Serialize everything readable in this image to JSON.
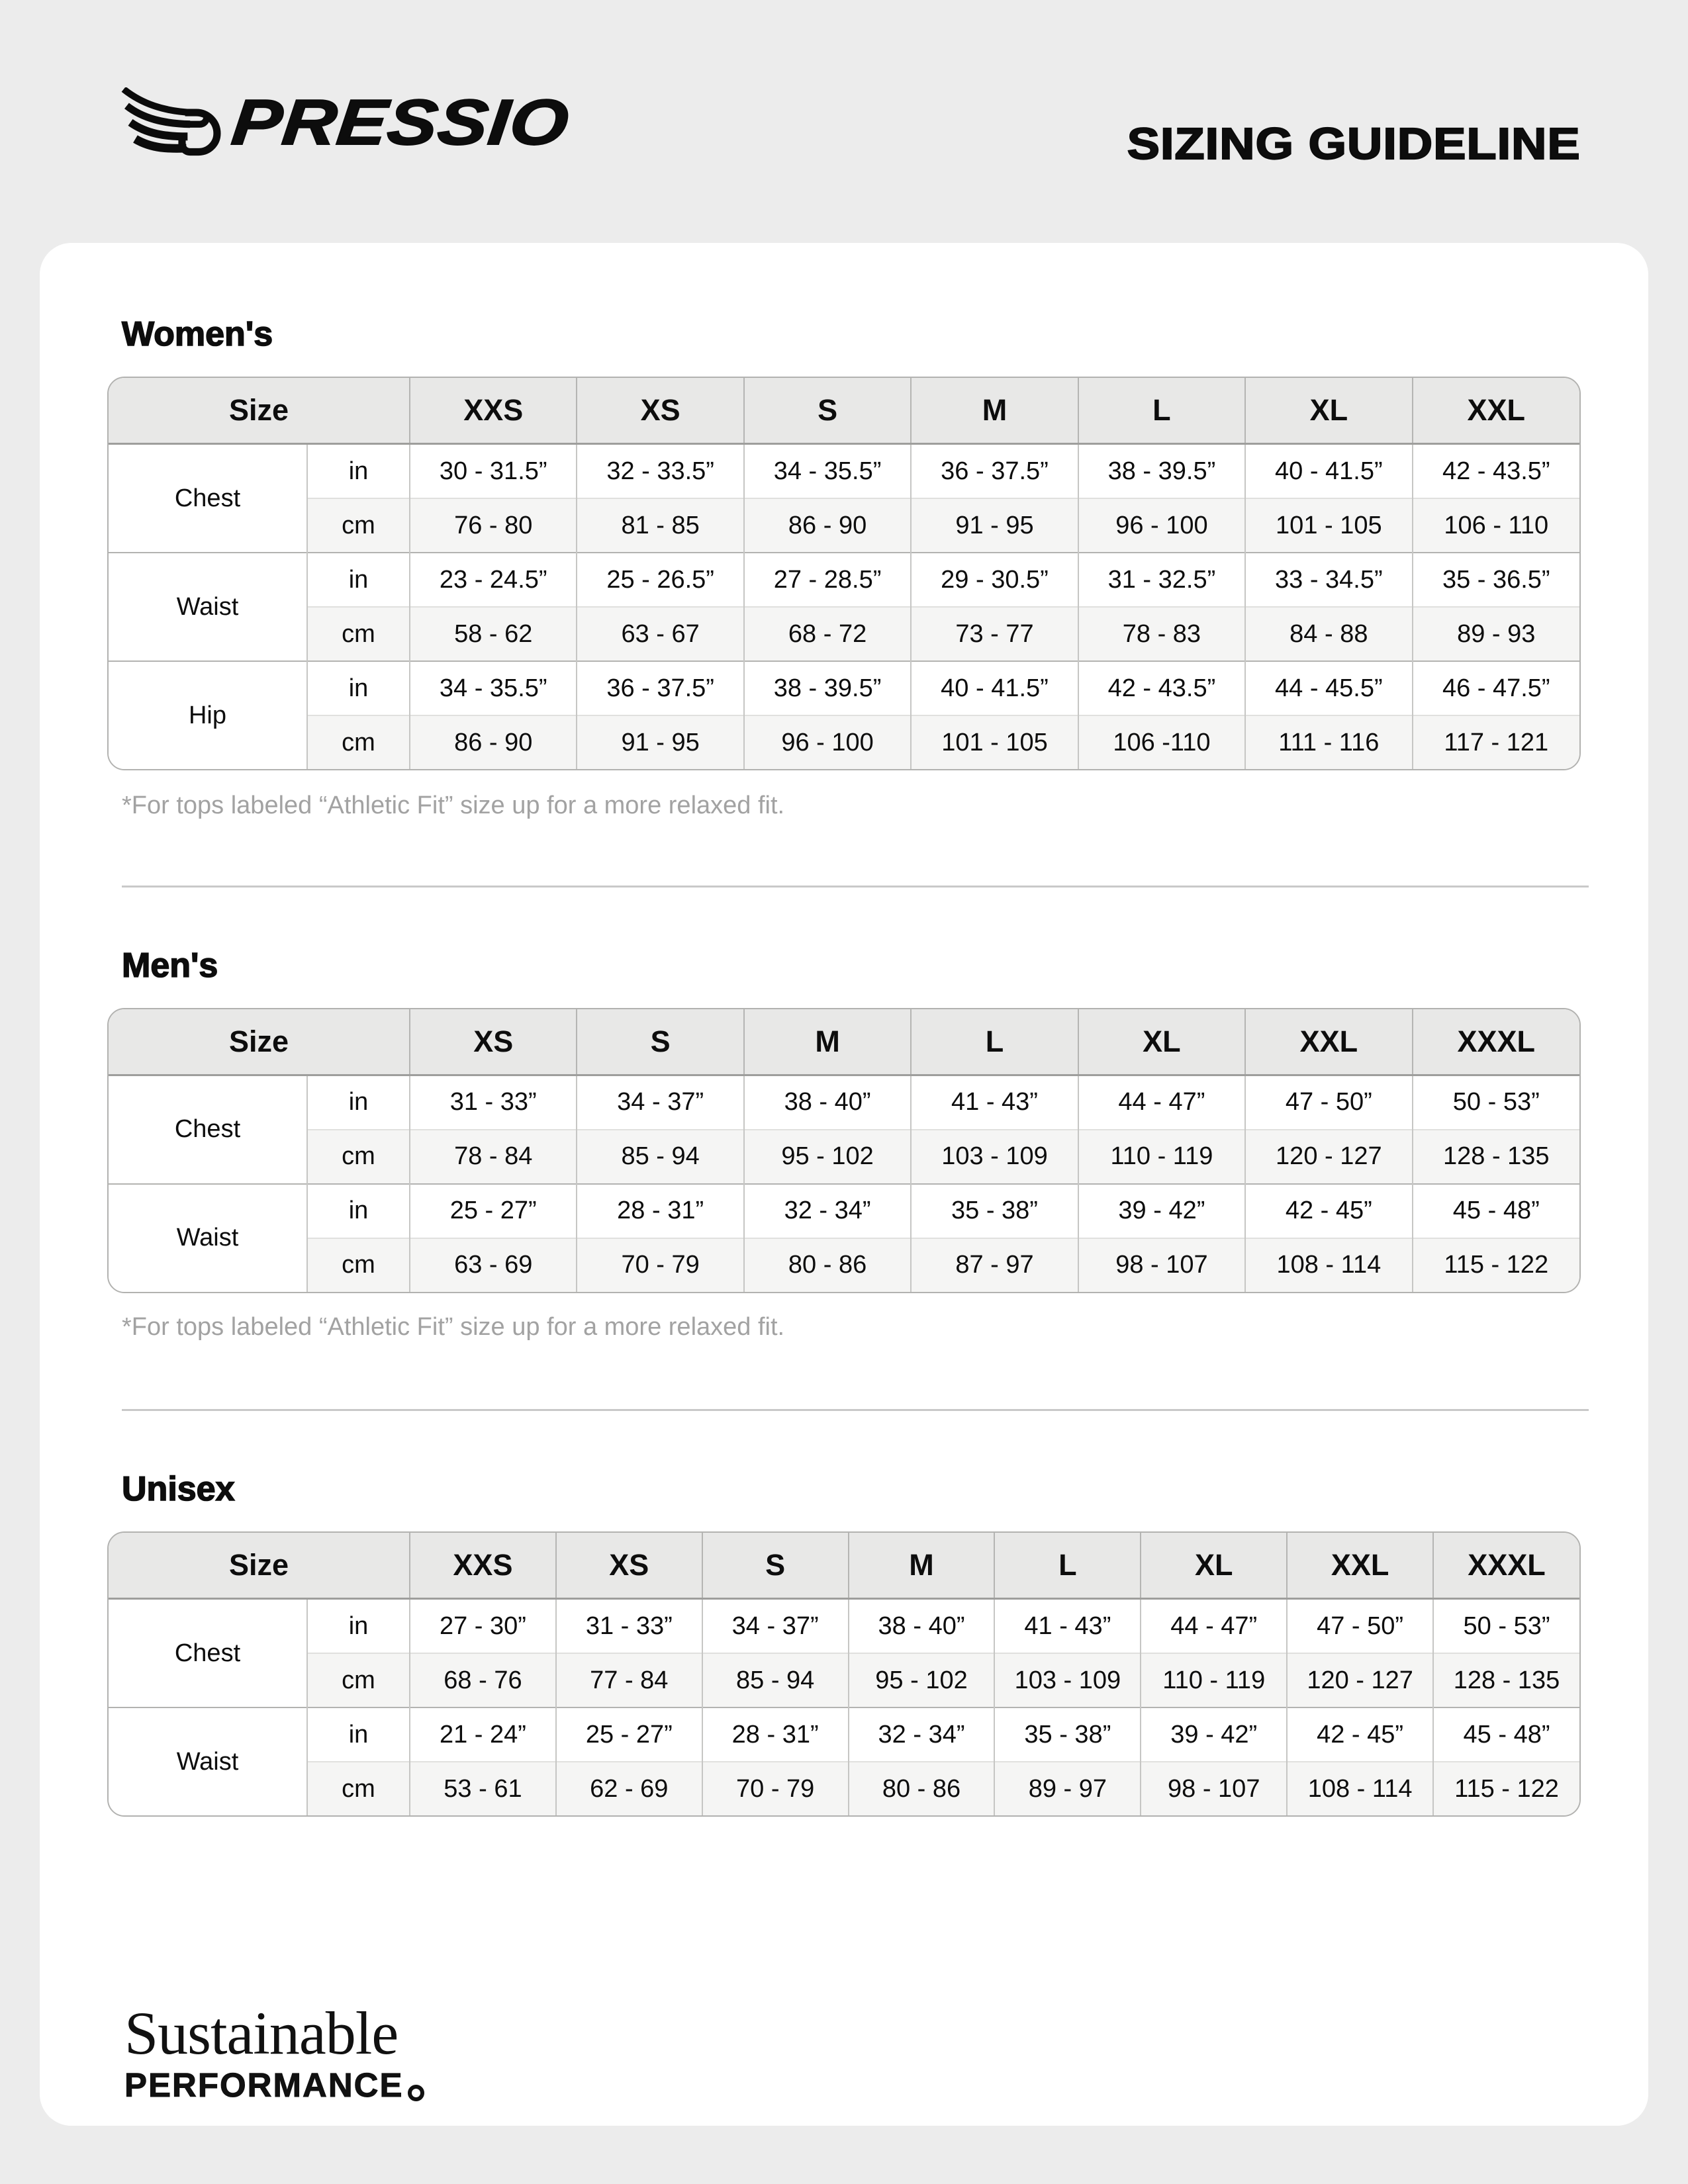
{
  "brand": {
    "name": "PRESSIO",
    "icon": "pressio-wing-icon",
    "color": "#0b0b0b"
  },
  "title": "SIZING GUIDELINE",
  "sections": [
    {
      "id": "womens",
      "heading": "Women's",
      "footnote": "*For tops labeled “Athletic Fit” size up for a more relaxed fit.",
      "table": {
        "size_header": "Size",
        "sizes": [
          "XXS",
          "XS",
          "S",
          "M",
          "L",
          "XL",
          "XXL"
        ],
        "unit_labels": [
          "in",
          "cm"
        ],
        "measurements": [
          {
            "label": "Chest",
            "rows": [
              {
                "unit": "in",
                "values": [
                  "30 - 31.5”",
                  "32 - 33.5”",
                  "34 - 35.5”",
                  "36 - 37.5”",
                  "38 - 39.5”",
                  "40 - 41.5”",
                  "42 - 43.5”"
                ]
              },
              {
                "unit": "cm",
                "values": [
                  "76 - 80",
                  "81 - 85",
                  "86 - 90",
                  "91 - 95",
                  "96 - 100",
                  "101 - 105",
                  "106 - 110"
                ]
              }
            ]
          },
          {
            "label": "Waist",
            "rows": [
              {
                "unit": "in",
                "values": [
                  "23 - 24.5”",
                  "25 - 26.5”",
                  "27 - 28.5”",
                  "29 - 30.5”",
                  "31 - 32.5”",
                  "33 - 34.5”",
                  "35 - 36.5”"
                ]
              },
              {
                "unit": "cm",
                "values": [
                  "58 - 62",
                  "63 - 67",
                  "68 - 72",
                  "73 - 77",
                  "78 - 83",
                  "84 - 88",
                  "89 - 93"
                ]
              }
            ]
          },
          {
            "label": "Hip",
            "rows": [
              {
                "unit": "in",
                "values": [
                  "34 - 35.5”",
                  "36 - 37.5”",
                  "38 - 39.5”",
                  "40 - 41.5”",
                  "42 - 43.5”",
                  "44 - 45.5”",
                  "46 - 47.5”"
                ]
              },
              {
                "unit": "cm",
                "values": [
                  "86 - 90",
                  "91 - 95",
                  "96 - 100",
                  "101 - 105",
                  "106 -110",
                  "111 - 116",
                  "117 - 121"
                ]
              }
            ]
          }
        ]
      }
    },
    {
      "id": "mens",
      "heading": "Men's",
      "footnote": "*For tops labeled “Athletic Fit” size up for a more relaxed fit.",
      "table": {
        "size_header": "Size",
        "sizes": [
          "XS",
          "S",
          "M",
          "L",
          "XL",
          "XXL",
          "XXXL"
        ],
        "unit_labels": [
          "in",
          "cm"
        ],
        "measurements": [
          {
            "label": "Chest",
            "rows": [
              {
                "unit": "in",
                "values": [
                  "31 - 33”",
                  "34 - 37”",
                  "38 - 40”",
                  "41 - 43”",
                  "44 - 47”",
                  "47 - 50”",
                  "50 - 53”"
                ]
              },
              {
                "unit": "cm",
                "values": [
                  "78 - 84",
                  "85 - 94",
                  "95 - 102",
                  "103 - 109",
                  "110 - 119",
                  "120 - 127",
                  "128 - 135"
                ]
              }
            ]
          },
          {
            "label": "Waist",
            "rows": [
              {
                "unit": "in",
                "values": [
                  "25 - 27”",
                  "28 - 31”",
                  "32 - 34”",
                  "35 - 38”",
                  "39 - 42”",
                  "42 - 45”",
                  "45 - 48”"
                ]
              },
              {
                "unit": "cm",
                "values": [
                  "63 - 69",
                  "70 - 79",
                  "80 - 86",
                  "87 - 97",
                  "98 - 107",
                  "108 - 114",
                  "115 - 122"
                ]
              }
            ]
          }
        ]
      }
    },
    {
      "id": "unisex",
      "heading": "Unisex",
      "footnote": "",
      "table": {
        "size_header": "Size",
        "sizes": [
          "XXS",
          "XS",
          "S",
          "M",
          "L",
          "XL",
          "XXL",
          "XXXL"
        ],
        "unit_labels": [
          "in",
          "cm"
        ],
        "measurements": [
          {
            "label": "Chest",
            "rows": [
              {
                "unit": "in",
                "values": [
                  "27 - 30”",
                  "31 - 33”",
                  "34 - 37”",
                  "38 - 40”",
                  "41 - 43”",
                  "44 - 47”",
                  "47 - 50”",
                  "50 - 53”"
                ]
              },
              {
                "unit": "cm",
                "values": [
                  "68 - 76",
                  "77 - 84",
                  "85 - 94",
                  "95 - 102",
                  "103 - 109",
                  "110 - 119",
                  "120 - 127",
                  "128 - 135"
                ]
              }
            ]
          },
          {
            "label": "Waist",
            "rows": [
              {
                "unit": "in",
                "values": [
                  "21 - 24”",
                  "25 - 27”",
                  "28 - 31”",
                  "32 - 34”",
                  "35 - 38”",
                  "39 - 42”",
                  "42 - 45”",
                  "45 - 48”"
                ]
              },
              {
                "unit": "cm",
                "values": [
                  "53 - 61",
                  "62 - 69",
                  "70 - 79",
                  "80 - 86",
                  "89 - 97",
                  "98 - 107",
                  "108 - 114",
                  "115 - 122"
                ]
              }
            ]
          }
        ]
      }
    }
  ],
  "footer": {
    "line1": "Sustainable",
    "line2": "PERFORMANCE"
  }
}
